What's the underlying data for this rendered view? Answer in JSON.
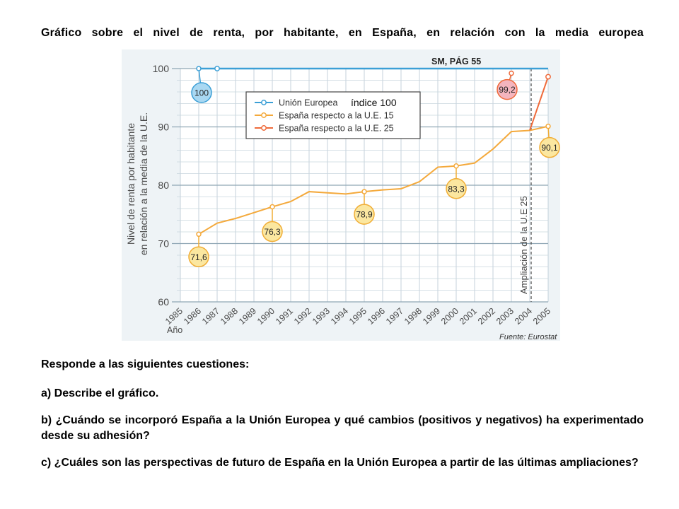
{
  "page": {
    "title": "Gráfico sobre el nivel de renta, por habitante, en España, en relación con la media europea",
    "intro": "Responde a las siguientes cuestiones:",
    "questions": [
      "a) Describe el gráfico.",
      "b) ¿Cuándo se incorporó España a la Unión Europea y qué cambios (positivos y negativos) ha experimentado desde su adhesión?",
      "c) ¿Cuáles son las perspectivas de futuro de España en la Unión Europea a partir de las últimas ampliaciones?"
    ]
  },
  "chart_data": {
    "type": "line",
    "title": "",
    "source_label": "SM, PÁG 55",
    "ylabel": "Nivel de renta por habitante en relación a la media de la U.E.",
    "xlabel": "Año",
    "ylim": [
      60,
      100
    ],
    "yticks": [
      60,
      70,
      80,
      90,
      100
    ],
    "x": [
      "1985",
      "1986",
      "1987",
      "1988",
      "1989",
      "1990",
      "1991",
      "1992",
      "1993",
      "1994",
      "1995",
      "1996",
      "1997",
      "1998",
      "1999",
      "2000",
      "2001",
      "2002",
      "2003",
      "2004",
      "2005"
    ],
    "grid": true,
    "legend": {
      "placement": "top-center",
      "entries": [
        "Unión Europea",
        "España respecto a la U.E. 15",
        "España respecto a la U.E. 25"
      ],
      "note": "índice 100"
    },
    "series": [
      {
        "name": "Unión Europea",
        "color": "#3b9fd6",
        "x": [
          "1986",
          "1987",
          "1988",
          "1989",
          "1990",
          "1991",
          "1992",
          "1993",
          "1994",
          "1995",
          "1996",
          "1997",
          "1998",
          "1999",
          "2000",
          "2001",
          "2002",
          "2003",
          "2004",
          "2005"
        ],
        "values": [
          100,
          100,
          100,
          100,
          100,
          100,
          100,
          100,
          100,
          100,
          100,
          100,
          100,
          100,
          100,
          100,
          100,
          100,
          100,
          100
        ]
      },
      {
        "name": "España respecto a la U.E. 15",
        "color": "#f4a93b",
        "x": [
          "1986",
          "1987",
          "1988",
          "1989",
          "1990",
          "1991",
          "1992",
          "1993",
          "1994",
          "1995",
          "1996",
          "1997",
          "1998",
          "1999",
          "2000",
          "2001",
          "2002",
          "2003",
          "2004",
          "2005"
        ],
        "values": [
          71.6,
          73.5,
          74.3,
          75.3,
          76.3,
          77.2,
          78.9,
          78.7,
          78.5,
          78.9,
          79.2,
          79.4,
          80.6,
          83.1,
          83.3,
          83.8,
          86.2,
          89.2,
          89.4,
          90.1
        ]
      },
      {
        "name": "España respecto a la U.E. 25",
        "color": "#ef6a3a",
        "x": [
          "2004",
          "2005"
        ],
        "values": [
          89.4,
          98.6
        ]
      }
    ],
    "callouts": [
      {
        "label": "100",
        "x": "1986",
        "y": 100,
        "series": "Unión Europea"
      },
      {
        "label": "71,6",
        "x": "1986",
        "y": 71.6,
        "series": "España respecto a la U.E. 15"
      },
      {
        "label": "76,3",
        "x": "1990",
        "y": 76.3,
        "series": "España respecto a la U.E. 15"
      },
      {
        "label": "78,9",
        "x": "1995",
        "y": 78.9,
        "series": "España respecto a la U.E. 15"
      },
      {
        "label": "83,3",
        "x": "2000",
        "y": 83.3,
        "series": "España respecto a la U.E. 15"
      },
      {
        "label": "99,2",
        "x": "2003",
        "y": 99.2,
        "series": "España respecto a la U.E. 25"
      },
      {
        "label": "90,1",
        "x": "2005",
        "y": 90.1,
        "series": "España respecto a la U.E. 15"
      }
    ],
    "annotations": [
      {
        "text": "Ampliación de la U.E 25",
        "x": "2004",
        "type": "vertical-dashed-line"
      }
    ],
    "source": "Fuente: Eurostat"
  }
}
